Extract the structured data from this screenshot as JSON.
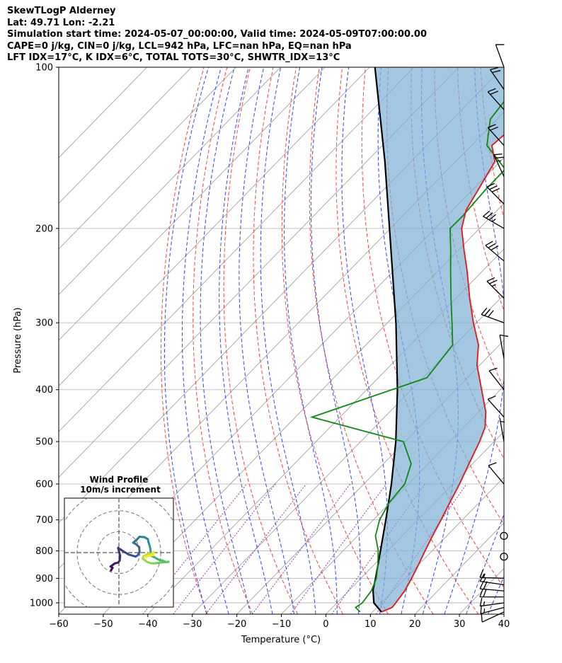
{
  "header": {
    "line1": "SkewTLogP Alderney",
    "line2": "Lat: 49.71   Lon: -2.21",
    "line3": "Simulation start time: 2024-05-07_00:00:00, Valid time: 2024-05-09T07:00:00.00",
    "line4": "CAPE=0 j/kg, CIN=0 j/kg, LCL=942 hPa, LFC=nan hPa, EQ=nan hPa",
    "line5": "LFT IDX=17°C, K IDX=6°C, TOTAL TOTS=30°C, SHWTR_IDX=13°C"
  },
  "colors": {
    "temperature": "#ee1111",
    "dewpoint": "#118811",
    "parcel": "#000000",
    "shading": "#7fb0d6",
    "dry_adiabat": "#ff4444",
    "moist_adiabat": "#3344ff",
    "mixing_ratio": "#9933cc",
    "isotherm": "#999999"
  },
  "chart_data": {
    "type": "line",
    "diagram": "skew-T log-P",
    "xlabel": "Temperature (°C)",
    "ylabel": "Pressure (hPa)",
    "xlim": [
      -60,
      40
    ],
    "ylim": [
      1050,
      100
    ],
    "log_y": true,
    "grid": true,
    "x_ticks": [
      "−60",
      "−50",
      "−40",
      "−30",
      "−20",
      "−10",
      "0",
      "10",
      "20",
      "30",
      "40"
    ],
    "y_ticks": [
      "1000",
      "900",
      "800",
      "700",
      "600",
      "500",
      "400",
      "300",
      "200",
      "100"
    ],
    "series": [
      {
        "role": "temperature",
        "points": [
          [
            1040,
            12
          ],
          [
            1020,
            13.4
          ],
          [
            1000,
            13.2
          ],
          [
            950,
            12.6
          ],
          [
            900,
            11.4
          ],
          [
            850,
            10
          ],
          [
            800,
            8.4
          ],
          [
            750,
            6.8
          ],
          [
            700,
            5.2
          ],
          [
            650,
            3.4
          ],
          [
            600,
            1.5
          ],
          [
            550,
            -0.8
          ],
          [
            500,
            -3.3
          ],
          [
            470,
            -5.2
          ],
          [
            440,
            -8.4
          ],
          [
            400,
            -14.2
          ],
          [
            360,
            -20.6
          ],
          [
            330,
            -24.7
          ],
          [
            300,
            -30.7
          ],
          [
            270,
            -36.9
          ],
          [
            240,
            -43.5
          ],
          [
            220,
            -48.6
          ],
          [
            200,
            -54
          ],
          [
            185,
            -57
          ],
          [
            170,
            -58.7
          ],
          [
            150,
            -61.2
          ],
          [
            140,
            -65.4
          ],
          [
            120,
            -64
          ],
          [
            100,
            -66.3
          ]
        ]
      },
      {
        "role": "dewpoint",
        "points": [
          [
            1040,
            7.2
          ],
          [
            1020,
            5.2
          ],
          [
            1000,
            5.7
          ],
          [
            950,
            5.1
          ],
          [
            900,
            3.5
          ],
          [
            850,
            0.9
          ],
          [
            800,
            -2.1
          ],
          [
            750,
            -6
          ],
          [
            700,
            -8.6
          ],
          [
            650,
            -10.2
          ],
          [
            600,
            -10.8
          ],
          [
            550,
            -13.8
          ],
          [
            500,
            -20.4
          ],
          [
            450,
            -46.3
          ],
          [
            380,
            -29.1
          ],
          [
            330,
            -30.5
          ],
          [
            300,
            -35.5
          ],
          [
            270,
            -41.1
          ],
          [
            240,
            -47.2
          ],
          [
            220,
            -51.6
          ],
          [
            200,
            -56.6
          ],
          [
            190,
            -56.5
          ],
          [
            170,
            -57.1
          ],
          [
            155,
            -57.2
          ],
          [
            140,
            -66.5
          ],
          [
            125,
            -71.5
          ],
          [
            100,
            -73.8
          ]
        ]
      },
      {
        "role": "parcel",
        "points": [
          [
            1040,
            12
          ],
          [
            1000,
            8.3
          ],
          [
            950,
            5.5
          ],
          [
            942,
            5.1
          ],
          [
            900,
            3.3
          ],
          [
            800,
            -1.6
          ],
          [
            700,
            -7.2
          ],
          [
            600,
            -13.8
          ],
          [
            500,
            -22.1
          ],
          [
            400,
            -33.1
          ],
          [
            300,
            -48.1
          ],
          [
            200,
            -70.2
          ],
          [
            150,
            -85.9
          ],
          [
            100,
            -108.8
          ]
        ]
      }
    ],
    "wind_barbs": [
      {
        "p": 1040,
        "dir": 245,
        "kt": 8
      },
      {
        "p": 1020,
        "dir": 255,
        "kt": 13
      },
      {
        "p": 1000,
        "dir": 262,
        "kt": 16
      },
      {
        "p": 975,
        "dir": 270,
        "kt": 18
      },
      {
        "p": 950,
        "dir": 275,
        "kt": 18
      },
      {
        "p": 925,
        "dir": 278,
        "kt": 16
      },
      {
        "p": 900,
        "dir": 272,
        "kt": 14
      },
      {
        "p": 820,
        "dir": 0,
        "kt": 0
      },
      {
        "p": 750,
        "dir": 0,
        "kt": 0
      },
      {
        "p": 600,
        "dir": 320,
        "kt": 8
      },
      {
        "p": 500,
        "dir": 350,
        "kt": 5
      },
      {
        "p": 450,
        "dir": 318,
        "kt": 8
      },
      {
        "p": 400,
        "dir": 322,
        "kt": 9
      },
      {
        "p": 350,
        "dir": 350,
        "kt": 10
      },
      {
        "p": 300,
        "dir": 290,
        "kt": 30
      },
      {
        "p": 270,
        "dir": 315,
        "kt": 26
      },
      {
        "p": 230,
        "dir": 310,
        "kt": 30
      },
      {
        "p": 200,
        "dir": 300,
        "kt": 36
      },
      {
        "p": 180,
        "dir": 315,
        "kt": 32
      },
      {
        "p": 160,
        "dir": 335,
        "kt": 23
      },
      {
        "p": 140,
        "dir": 318,
        "kt": 19
      },
      {
        "p": 120,
        "dir": 318,
        "kt": 18
      },
      {
        "p": 110,
        "dir": 325,
        "kt": 20
      },
      {
        "p": 100,
        "dir": 340,
        "kt": 8
      }
    ],
    "hodograph": {
      "title_line1": "Wind Profile",
      "title_line2": "10m/s increment",
      "rings": [
        10,
        20,
        30,
        40
      ],
      "points": [
        [
          -2,
          4.5
        ],
        [
          -1.6,
          3.8
        ],
        [
          -2.1,
          3.5
        ],
        [
          -1,
          2.7
        ],
        [
          -0.2,
          2.5
        ],
        [
          0.2,
          2
        ],
        [
          0.3,
          0.8
        ],
        [
          -0.2,
          -1.2
        ],
        [
          1,
          -0.4
        ],
        [
          2.5,
          0.5
        ],
        [
          4.2,
          1
        ],
        [
          4.8,
          0.6
        ],
        [
          5.2,
          -0.2
        ],
        [
          5.1,
          -1.4
        ],
        [
          4.2,
          -2.2
        ],
        [
          3.6,
          -2.5
        ],
        [
          4.4,
          -3.2
        ],
        [
          5.2,
          -4
        ],
        [
          6.4,
          -3.9
        ],
        [
          7.3,
          -3.4
        ],
        [
          7.4,
          -2.8
        ],
        [
          7.6,
          -2.2
        ],
        [
          7.9,
          -1.1
        ],
        [
          8,
          -0.2
        ],
        [
          7.8,
          0.6
        ],
        [
          9,
          1.2
        ],
        [
          10,
          1.8
        ],
        [
          11,
          2
        ],
        [
          12,
          2.4
        ],
        [
          12.5,
          2.3
        ],
        [
          10.8,
          2.5
        ],
        [
          9.1,
          2.7
        ],
        [
          8.1,
          2.7
        ],
        [
          7,
          2.3
        ],
        [
          6,
          1.5
        ],
        [
          6.2,
          0.9
        ],
        [
          7.5,
          0.2
        ],
        [
          8.3,
          0.4
        ],
        [
          8.8,
          -0.1
        ],
        [
          8.6,
          0.6
        ],
        [
          6.5,
          1.1
        ]
      ]
    }
  }
}
